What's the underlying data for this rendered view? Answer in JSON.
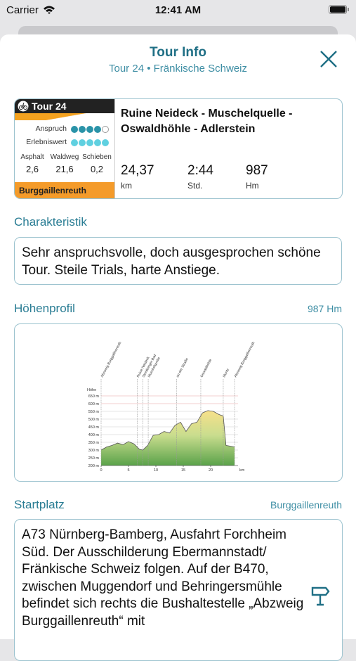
{
  "status_bar": {
    "carrier": "Carrier",
    "time": "12:41 AM"
  },
  "header": {
    "title": "Tour Info",
    "subtitle": "Tour 24 • Fränkische Schweiz"
  },
  "tour_card": {
    "badge": "Tour 24",
    "ratings": [
      {
        "label": "Anspruch",
        "value": 4
      },
      {
        "label": "Erlebniswert",
        "value": 5
      }
    ],
    "rating_scale": 5,
    "surfaces": [
      {
        "label": "Asphalt",
        "value": "2,6"
      },
      {
        "label": "Waldweg",
        "value": "21,6"
      },
      {
        "label": "Schieben",
        "value": "0,2"
      }
    ],
    "region": "Burggaillenreuth",
    "name": "Ruine Neideck - Muschelquelle - Oswaldhöhle - Adlerstein",
    "stats": [
      {
        "value": "24,37",
        "unit": "km"
      },
      {
        "value": "2:44",
        "unit": "Std."
      },
      {
        "value": "987",
        "unit": "Hm"
      }
    ]
  },
  "characteristic": {
    "title": "Charakteristik",
    "text": "Sehr anspruchsvolle, doch ausgesprochen schöne Tour. Steile Trials, harte Anstiege."
  },
  "profile": {
    "title": "Höhenprofil",
    "aside": "987 Hm"
  },
  "chart_data": {
    "type": "area",
    "y_label": "Höhe",
    "x_unit": "km",
    "xlim": [
      0,
      25
    ],
    "ylim": [
      200,
      650
    ],
    "xticks": [
      0,
      5,
      10,
      15,
      20
    ],
    "yticks": [
      {
        "value": 200,
        "label": "200 m"
      },
      {
        "value": 250,
        "label": "250 m"
      },
      {
        "value": 300,
        "label": "300 m"
      },
      {
        "value": 350,
        "label": "350 m"
      },
      {
        "value": 400,
        "label": "400 m"
      },
      {
        "value": 450,
        "label": "450 m"
      },
      {
        "value": 500,
        "label": "500 m"
      },
      {
        "value": 550,
        "label": "550 m"
      },
      {
        "value": 600,
        "label": "600 m"
      },
      {
        "value": 650,
        "label": "650 m"
      }
    ],
    "x": [
      0,
      1,
      2,
      3,
      4,
      5,
      6,
      7,
      7.6,
      8.5,
      9.5,
      10.5,
      11.5,
      12.5,
      13.5,
      14.5,
      15.5,
      16.5,
      17.5,
      18.5,
      19.5,
      20.5,
      21.5,
      22.3,
      22.8,
      23.6,
      24.37
    ],
    "values": [
      300,
      320,
      330,
      345,
      335,
      355,
      340,
      305,
      300,
      330,
      395,
      400,
      420,
      410,
      460,
      480,
      420,
      470,
      480,
      540,
      555,
      550,
      530,
      520,
      330,
      325,
      320
    ],
    "waypoints": [
      {
        "label": "Abzweig Burggaillenreuth",
        "x": 0
      },
      {
        "label": "Ruine Neideck",
        "x": 6.6
      },
      {
        "label": "Streitberger Bad",
        "x": 7.6
      },
      {
        "label": "Muschelquelle",
        "x": 8.6
      },
      {
        "label": "an der Straße",
        "x": 13.8
      },
      {
        "label": "Oswaldhöhle",
        "x": 18.2
      },
      {
        "label": "Moritz",
        "x": 22.3
      },
      {
        "label": "Abzweig Burggaillenreuth",
        "x": 24.37
      }
    ]
  },
  "start": {
    "title": "Startplatz",
    "aside": "Burggaillenreuth",
    "text": "A73 Nürnberg-Bamberg, Ausfahrt Forchheim Süd. Der Ausschilderung Ebermannstadt/ Fränkische Schweiz folgen. Auf der B470, zwischen Muggendorf und Behringersmühle befindet sich rechts die Bushaltestelle „Abzweig Burggaillenreuth“ mit"
  }
}
